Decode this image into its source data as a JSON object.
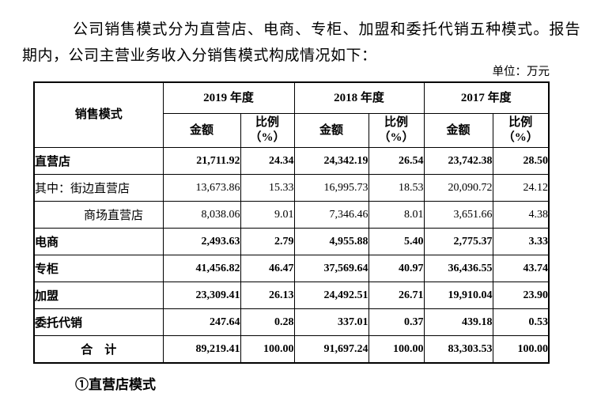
{
  "document": {
    "intro": "公司销售模式分为直营店、电商、专柜、加盟和委托代销五种模式。报告期内，公司主营业务收入分销售模式构成情况如下：",
    "unit_label": "单位：万元",
    "next_section_partial": "①直营店模式"
  },
  "table": {
    "model_header": "销售模式",
    "years": [
      {
        "label": "2019 年度"
      },
      {
        "label": "2018 年度"
      },
      {
        "label": "2017 年度"
      }
    ],
    "sub": {
      "amount": "金额",
      "ratio_line1": "比例",
      "ratio_line2": "（%）"
    },
    "rows": [
      {
        "label": "直营店",
        "bold": true,
        "indent": false,
        "center": false,
        "values": [
          "21,711.92",
          "24.34",
          "24,342.19",
          "26.54",
          "23,742.38",
          "28.50"
        ]
      },
      {
        "label": "其中：街边直营店",
        "bold": false,
        "indent": false,
        "center": false,
        "values": [
          "13,673.86",
          "15.33",
          "16,995.73",
          "18.53",
          "20,090.72",
          "24.12"
        ]
      },
      {
        "label": "商场直营店",
        "bold": false,
        "indent": true,
        "center": false,
        "values": [
          "8,038.06",
          "9.01",
          "7,346.46",
          "8.01",
          "3,651.66",
          "4.38"
        ]
      },
      {
        "label": "电商",
        "bold": true,
        "indent": false,
        "center": false,
        "values": [
          "2,493.63",
          "2.79",
          "4,955.88",
          "5.40",
          "2,775.37",
          "3.33"
        ]
      },
      {
        "label": "专柜",
        "bold": true,
        "indent": false,
        "center": false,
        "values": [
          "41,456.82",
          "46.47",
          "37,569.64",
          "40.97",
          "36,436.55",
          "43.74"
        ]
      },
      {
        "label": "加盟",
        "bold": true,
        "indent": false,
        "center": false,
        "values": [
          "23,309.41",
          "26.13",
          "24,492.51",
          "26.71",
          "19,910.04",
          "23.90"
        ]
      },
      {
        "label": "委托代销",
        "bold": true,
        "indent": false,
        "center": false,
        "values": [
          "247.64",
          "0.28",
          "337.01",
          "0.37",
          "439.18",
          "0.53"
        ]
      },
      {
        "label": "合　计",
        "bold": true,
        "indent": false,
        "center": true,
        "values": [
          "89,219.41",
          "100.00",
          "91,697.24",
          "100.00",
          "83,303.53",
          "100.00"
        ]
      }
    ]
  }
}
